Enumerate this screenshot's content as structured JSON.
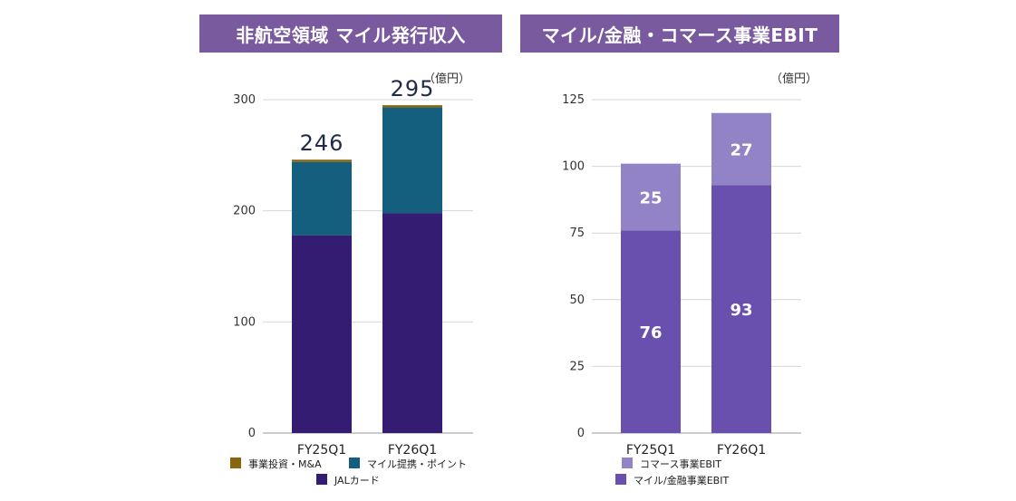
{
  "chart_data": [
    {
      "type": "bar",
      "stacked": true,
      "title": "非航空領域 マイル発行収入",
      "unit_label": "（億円）",
      "categories": [
        "FY25Q1",
        "FY26Q1"
      ],
      "ylim": [
        0,
        300
      ],
      "yticks": [
        0,
        100,
        200,
        300
      ],
      "totals": [
        "246",
        "295"
      ],
      "series": [
        {
          "name": "JALカード",
          "values": [
            178,
            198
          ],
          "color": "#341c72"
        },
        {
          "name": "マイル提携・ポイント",
          "values": [
            66,
            95
          ],
          "color": "#155f7e"
        },
        {
          "name": "事業投資・M&A",
          "values": [
            2,
            2
          ],
          "color": "#8a6510"
        }
      ],
      "legend": [
        "事業投資・M&A",
        "マイル提携・ポイント",
        "JALカード"
      ],
      "grid": true
    },
    {
      "type": "bar",
      "stacked": true,
      "title": "マイル/金融・コマース事業EBIT",
      "unit_label": "（億円）",
      "categories": [
        "FY25Q1",
        "FY26Q1"
      ],
      "ylim": [
        0,
        125
      ],
      "yticks": [
        0,
        25,
        50,
        75,
        100,
        125
      ],
      "series": [
        {
          "name": "マイル/金融事業EBIT",
          "values": [
            76,
            93
          ],
          "labels": [
            "76",
            "93"
          ],
          "color": "#6a50ae"
        },
        {
          "name": "コマース事業EBIT",
          "values": [
            25,
            27
          ],
          "labels": [
            "25",
            "27"
          ],
          "color": "#9282c6"
        }
      ],
      "legend": [
        "コマース事業EBIT",
        "マイル/金融事業EBIT"
      ],
      "grid": true
    }
  ]
}
